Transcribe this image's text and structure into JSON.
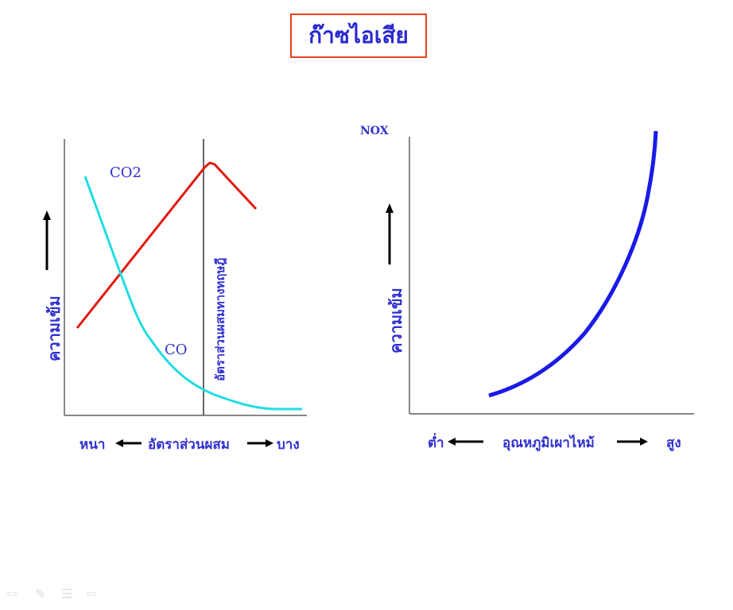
{
  "title": "ก๊าซไอเสีย",
  "left": {
    "co2": "CO2",
    "co": "CO",
    "y_label": "ความเข้ม",
    "stoich": "อัตราส่วนผสมทางทฤษฎี",
    "x_left": "หนา",
    "x_mid": "อัตราส่วนผสม",
    "x_right": "บาง",
    "colors": {
      "co2": "#e01a10",
      "co": "#20dde0"
    }
  },
  "right": {
    "nox": "NOX",
    "y_label": "ความเข้ม",
    "x_left": "ต่ำ",
    "x_mid": "อุณหภูมิเผาไหม้",
    "x_right": "สูง",
    "colors": {
      "nox": "#1a1ae8"
    }
  },
  "nav": {
    "icons": [
      "prev-icon",
      "pen-icon",
      "menu-icon",
      "next-icon"
    ]
  }
}
